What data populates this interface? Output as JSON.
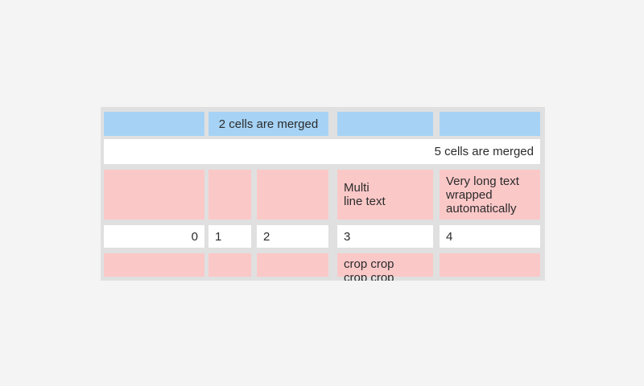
{
  "page": {
    "background_color": "#f4f4f4"
  },
  "table": {
    "colors": {
      "header_blue": "#a6d3f5",
      "stripe_pink": "#fbc8c8",
      "cell_white": "#ffffff",
      "gridline_gray": "#e0e0e0",
      "text": "#2b2b2b"
    },
    "rows": [
      {
        "kind": "header-blue",
        "cells": [
          {
            "text": ""
          },
          {
            "text": "2 cells are merged",
            "merge": 2
          },
          {
            "text": ""
          },
          {
            "text": ""
          }
        ]
      },
      {
        "kind": "full-width-merge",
        "cells": [
          {
            "text": "5 cells are merged",
            "merge": 5
          }
        ]
      },
      {
        "kind": "pink-stripe",
        "cells": [
          {
            "text": ""
          },
          {
            "text": ""
          },
          {
            "text": ""
          },
          {
            "text": "Multi\nline text"
          },
          {
            "text": "Very long text wrapped automatically"
          }
        ]
      },
      {
        "kind": "numbers",
        "cells": [
          {
            "text": "0"
          },
          {
            "text": "1"
          },
          {
            "text": "2"
          },
          {
            "text": "3"
          },
          {
            "text": "4"
          }
        ]
      },
      {
        "kind": "pink-cropped",
        "cells": [
          {
            "text": ""
          },
          {
            "text": ""
          },
          {
            "text": ""
          },
          {
            "text": "crop crop crop crop"
          },
          {
            "text": ""
          }
        ]
      }
    ]
  }
}
